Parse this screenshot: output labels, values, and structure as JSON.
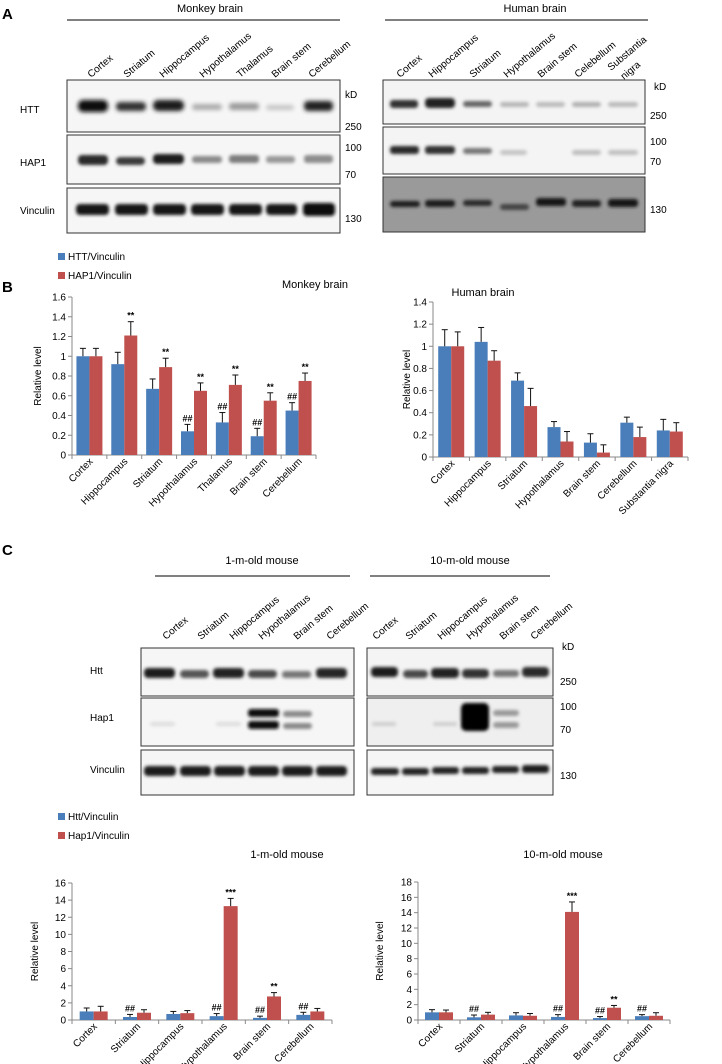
{
  "figure": {
    "panel_labels": [
      "A",
      "B",
      "C"
    ],
    "colors": {
      "htt": "#4a7ebb",
      "hap1": "#c0504d",
      "axis": "#888888"
    },
    "unit_label": "kD"
  },
  "panel_a": {
    "monkey": {
      "title": "Monkey brain",
      "lanes": [
        "Cortex",
        "Striatum",
        "Hippocampus",
        "Hypothalamus",
        "Thalamus",
        "Brain stem",
        "Cerebellum"
      ],
      "rows": [
        "HTT",
        "HAP1",
        "Vinculin"
      ],
      "markers": [
        "250",
        "100",
        "70",
        "130"
      ]
    },
    "human": {
      "title": "Human brain",
      "lanes": [
        "Cortex",
        "Hippocampus",
        "Striatum",
        "Hypothalamus",
        "Brain stem",
        "Celebellum",
        "Substantia",
        "nigra"
      ],
      "markers": [
        "250",
        "100",
        "70",
        "130"
      ]
    }
  },
  "panel_c": {
    "young": {
      "title": "1-m-old mouse",
      "lanes": [
        "Cortex",
        "Striatum",
        "Hippocampus",
        "Hypothalamus",
        "Brain stem",
        "Cerebellum"
      ],
      "rows": [
        "Htt",
        "Hap1",
        "Vinculin"
      ]
    },
    "old": {
      "title": "10-m-old mouse",
      "lanes": [
        "Cortex",
        "Striatum",
        "Hippocampus",
        "Hypothalamus",
        "Brain stem",
        "Cerebellum"
      ],
      "markers": [
        "250",
        "100",
        "70",
        "130"
      ]
    }
  },
  "legends": {
    "b": [
      "HTT/Vinculin",
      "HAP1/Vinculin"
    ],
    "c": [
      "Htt/Vinculin",
      "Hap1/Vinculin"
    ]
  },
  "chart_data": [
    {
      "type": "bar",
      "title": "Monkey brain",
      "xlabel": "",
      "ylabel": "Relative level",
      "ylim": [
        0,
        1.6
      ],
      "yticks": [
        "0",
        "0.2",
        "0.4",
        "0.6",
        "0.8",
        "1",
        "1.2",
        "1.4",
        "1.6"
      ],
      "categories": [
        "Cortex",
        "Hippocampus",
        "Striatum",
        "Hypothalamus",
        "Thalamus",
        "Brain stem",
        "Cerebellum"
      ],
      "series": [
        {
          "name": "HTT/Vinculin",
          "values": [
            1.0,
            0.92,
            0.67,
            0.24,
            0.33,
            0.19,
            0.45
          ],
          "errors": [
            0.08,
            0.12,
            0.1,
            0.07,
            0.1,
            0.08,
            0.08
          ],
          "annotations": [
            "",
            "",
            "",
            "##",
            "##",
            "##",
            "##"
          ]
        },
        {
          "name": "HAP1/Vinculin",
          "values": [
            1.0,
            1.21,
            0.89,
            0.65,
            0.71,
            0.55,
            0.75
          ],
          "errors": [
            0.08,
            0.14,
            0.09,
            0.08,
            0.1,
            0.08,
            0.08
          ],
          "annotations": [
            "",
            "**",
            "**",
            "**",
            "**",
            "**",
            "**"
          ]
        }
      ]
    },
    {
      "type": "bar",
      "title": "Human brain",
      "xlabel": "",
      "ylabel": "Relative level",
      "ylim": [
        0,
        1.4
      ],
      "yticks": [
        "0",
        "0.2",
        "0.4",
        "0.6",
        "0.8",
        "1",
        "1.2",
        "1.4"
      ],
      "categories": [
        "Cortex",
        "Hippocampus",
        "Striatum",
        "Hypothalamus",
        "Brain stem",
        "Cerebellum",
        "Substantia nigra"
      ],
      "series": [
        {
          "name": "HTT/Vinculin",
          "values": [
            1.0,
            1.04,
            0.69,
            0.27,
            0.13,
            0.31,
            0.24
          ],
          "errors": [
            0.15,
            0.13,
            0.07,
            0.05,
            0.08,
            0.05,
            0.1
          ],
          "annotations": [
            "",
            "",
            "",
            "",
            "",
            "",
            ""
          ]
        },
        {
          "name": "HAP1/Vinculin",
          "values": [
            1.0,
            0.87,
            0.46,
            0.14,
            0.04,
            0.18,
            0.23
          ],
          "errors": [
            0.13,
            0.09,
            0.16,
            0.09,
            0.07,
            0.09,
            0.08
          ],
          "annotations": [
            "",
            "",
            "",
            "",
            "",
            "",
            ""
          ]
        }
      ]
    },
    {
      "type": "bar",
      "title": "1-m-old mouse",
      "xlabel": "",
      "ylabel": "Relative level",
      "ylim": [
        0,
        16
      ],
      "yticks": [
        "0",
        "2",
        "4",
        "6",
        "8",
        "10",
        "12",
        "14",
        "16"
      ],
      "categories": [
        "Cortex",
        "Striatum",
        "Hippocampus",
        "Hypothalamus",
        "Brain stem",
        "Cerebellum"
      ],
      "series": [
        {
          "name": "Htt/Vinculin",
          "values": [
            1.0,
            0.35,
            0.7,
            0.45,
            0.25,
            0.6
          ],
          "errors": [
            0.4,
            0.3,
            0.3,
            0.3,
            0.2,
            0.3
          ],
          "annotations": [
            "",
            "##",
            "",
            "##",
            "##",
            "##"
          ]
        },
        {
          "name": "Hap1/Vinculin",
          "values": [
            1.0,
            0.85,
            0.8,
            13.3,
            2.75,
            1.0
          ],
          "errors": [
            0.6,
            0.35,
            0.3,
            0.9,
            0.45,
            0.35
          ],
          "annotations": [
            "",
            "",
            "",
            "***",
            "**",
            ""
          ]
        }
      ]
    },
    {
      "type": "bar",
      "title": "10-m-old mouse",
      "xlabel": "",
      "ylabel": "Relative level",
      "ylim": [
        0,
        18
      ],
      "yticks": [
        "0",
        "2",
        "4",
        "6",
        "8",
        "10",
        "12",
        "14",
        "16",
        "18"
      ],
      "categories": [
        "Cortex",
        "Striatum",
        "Hippocampus",
        "Hypothalamus",
        "Brain stem",
        "Cerebellum"
      ],
      "series": [
        {
          "name": "Htt/Vinculin",
          "values": [
            1.0,
            0.35,
            0.6,
            0.4,
            0.25,
            0.5
          ],
          "errors": [
            0.35,
            0.3,
            0.35,
            0.3,
            0.2,
            0.2
          ],
          "annotations": [
            "",
            "##",
            "",
            "##",
            "##",
            "##"
          ]
        },
        {
          "name": "Hap1/Vinculin",
          "values": [
            1.0,
            0.7,
            0.55,
            14.1,
            1.6,
            0.55
          ],
          "errors": [
            0.3,
            0.3,
            0.3,
            1.3,
            0.3,
            0.4
          ],
          "annotations": [
            "",
            "",
            "",
            "***",
            "**",
            ""
          ]
        }
      ]
    }
  ]
}
